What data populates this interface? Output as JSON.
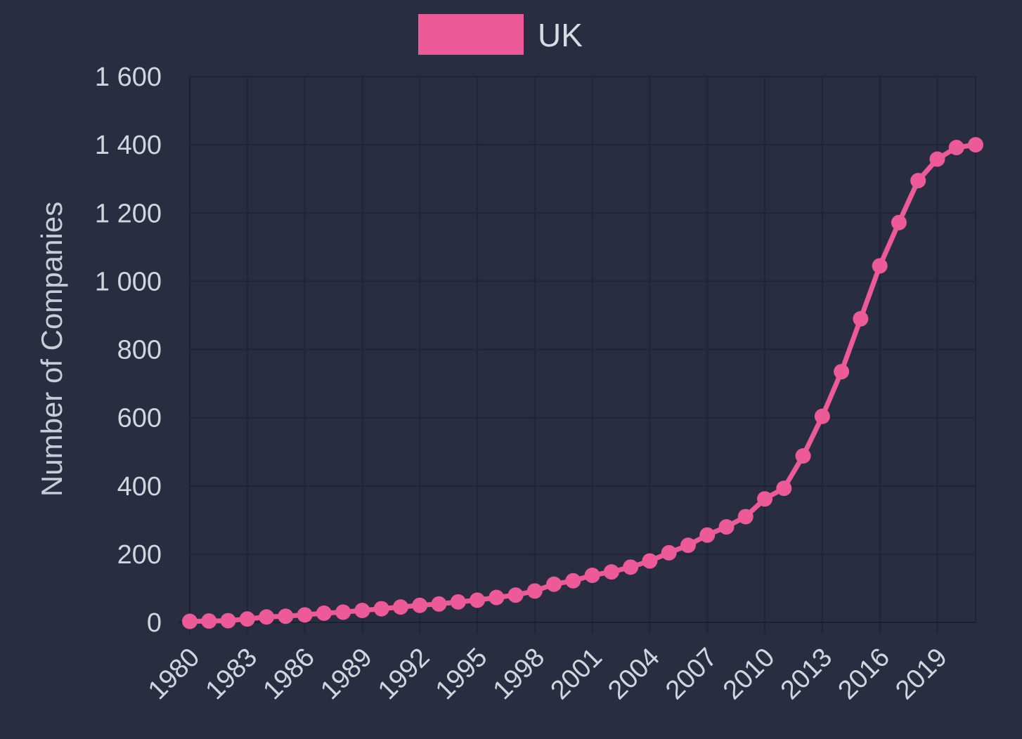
{
  "chart_data": {
    "type": "line",
    "title": "",
    "xlabel": "",
    "ylabel": "Number of Companies",
    "x": [
      1980,
      1981,
      1982,
      1983,
      1984,
      1985,
      1986,
      1987,
      1988,
      1989,
      1990,
      1991,
      1992,
      1993,
      1994,
      1995,
      1996,
      1997,
      1998,
      1999,
      2000,
      2001,
      2002,
      2003,
      2004,
      2005,
      2006,
      2007,
      2008,
      2009,
      2010,
      2011,
      2012,
      2013,
      2014,
      2015,
      2016,
      2017,
      2018,
      2019,
      2020,
      2021
    ],
    "x_tick_labels": [
      "1980",
      "1983",
      "1986",
      "1989",
      "1992",
      "1995",
      "1998",
      "2001",
      "2004",
      "2007",
      "2010",
      "2013",
      "2016",
      "2019"
    ],
    "y_tick_labels": [
      "0",
      "200",
      "400",
      "600",
      "800",
      "1 000",
      "1 200",
      "1 400",
      "1 600"
    ],
    "y_ticks": [
      0,
      200,
      400,
      600,
      800,
      1000,
      1200,
      1400,
      1600
    ],
    "ylim": [
      0,
      1600
    ],
    "xlim": [
      1980,
      2021
    ],
    "grid": true,
    "legend": "top-center",
    "series": [
      {
        "name": "UK",
        "color": "#ec5a97",
        "values": [
          3,
          4,
          5,
          10,
          16,
          18,
          22,
          27,
          30,
          35,
          40,
          45,
          50,
          54,
          60,
          65,
          73,
          80,
          92,
          112,
          122,
          138,
          148,
          162,
          180,
          204,
          226,
          256,
          280,
          310,
          362,
          393,
          488,
          604,
          735,
          890,
          1045,
          1172,
          1295,
          1358,
          1392,
          1400
        ]
      }
    ],
    "colors": {
      "background": "#282d41",
      "grid": "#20243a",
      "text": "#d3d5de",
      "series": "#ec5a97"
    }
  }
}
